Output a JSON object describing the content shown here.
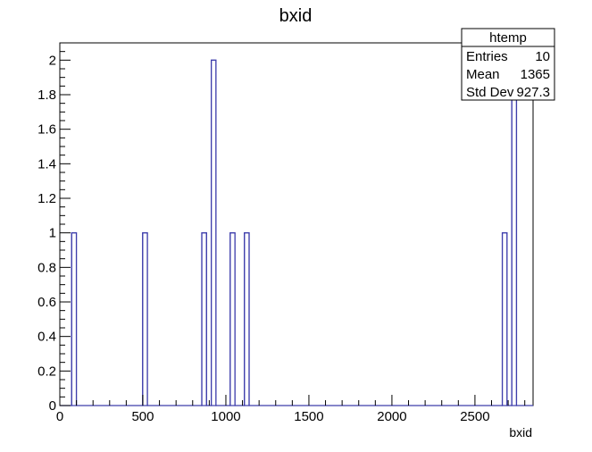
{
  "chart_data": {
    "type": "bar",
    "title": "bxid",
    "xlabel": "bxid",
    "ylabel": "",
    "xlim": [
      0,
      2850
    ],
    "ylim": [
      0,
      2.1
    ],
    "bin_width": 28.5,
    "x_ticks": [
      0,
      500,
      1000,
      1500,
      2000,
      2500
    ],
    "y_ticks": [
      0,
      0.2,
      0.4,
      0.6,
      0.8,
      1,
      1.2,
      1.4,
      1.6,
      1.8,
      2
    ],
    "y_tick_labels": [
      "0",
      "0.2",
      "0.4",
      "0.6",
      "0.8",
      "1",
      "1.2",
      "1.4",
      "1.6",
      "1.8",
      "2"
    ],
    "grid": false,
    "bars": [
      {
        "x_low": 71.25,
        "x_high": 99.75,
        "value": 1
      },
      {
        "x_low": 498.75,
        "x_high": 527.25,
        "value": 1
      },
      {
        "x_low": 855,
        "x_high": 883.5,
        "value": 1
      },
      {
        "x_low": 912,
        "x_high": 940.5,
        "value": 2
      },
      {
        "x_low": 1026,
        "x_high": 1054.5,
        "value": 1
      },
      {
        "x_low": 1111.5,
        "x_high": 1140,
        "value": 1
      },
      {
        "x_low": 2664.75,
        "x_high": 2693.25,
        "value": 1
      },
      {
        "x_low": 2721.75,
        "x_high": 2750.25,
        "value": 2
      }
    ],
    "line_color": "#3d3dab",
    "stats_box": {
      "title": "htemp",
      "rows": [
        {
          "label": "Entries",
          "value": "10"
        },
        {
          "label": "Mean",
          "value": "1365"
        },
        {
          "label": "Std Dev",
          "value": "927.3"
        }
      ],
      "placement": "top-right"
    }
  }
}
